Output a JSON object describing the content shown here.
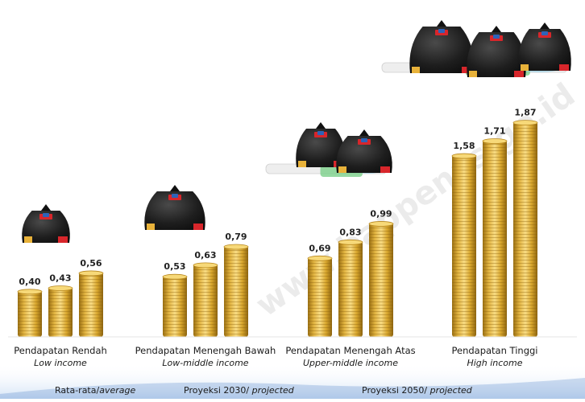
{
  "chart_data": {
    "type": "bar",
    "categories": [
      {
        "name_id": "Pendapatan Rendah",
        "name_en": "Low income"
      },
      {
        "name_id": "Pendapatan Menengah Bawah",
        "name_en": "Low-middle income"
      },
      {
        "name_id": "Pendapatan Menengah Atas",
        "name_en": "Upper-middle income"
      },
      {
        "name_id": "Pendapatan Tinggi",
        "name_en": "High income"
      }
    ],
    "series": [
      {
        "name": "Rata-rata/average",
        "values": [
          "0,40",
          "0,53",
          "0,69",
          "1,58"
        ]
      },
      {
        "name": "Proyeksi 2030/ projected",
        "values": [
          "0,43",
          "0,63",
          "0,83",
          "1,71"
        ]
      },
      {
        "name": "Proyeksi 2050/ projected",
        "values": [
          "0,56",
          "0,79",
          "0,99",
          "1,87"
        ]
      }
    ],
    "numeric_values": [
      [
        0.4,
        0.43,
        0.56
      ],
      [
        0.53,
        0.63,
        0.79
      ],
      [
        0.69,
        0.83,
        0.99
      ],
      [
        1.58,
        1.71,
        1.87
      ]
    ],
    "legend": [
      {
        "text": "Rata-rata/",
        "italic": "average"
      },
      {
        "text": "Proyeksi 2030/ ",
        "italic": "projected"
      },
      {
        "text": "Proyeksi 2050/ ",
        "italic": "projected"
      }
    ],
    "watermark": "www.bappenas.go.id",
    "colors": {
      "coin_light": "#f6d77a",
      "coin_mid": "#d9a72e",
      "coin_dark": "#9a6f12",
      "bag": "#1b1b1b",
      "legend_band": "#3f78c4"
    }
  }
}
